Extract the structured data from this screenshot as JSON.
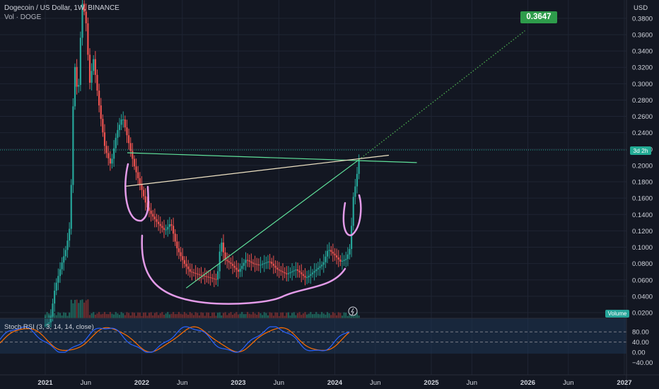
{
  "header": {
    "title": "Dogecoin / US Dollar, 1W, BINANCE",
    "volume_label": "Vol · DOGE"
  },
  "axis": {
    "currency": "USD"
  },
  "target_price_label": "0.3647",
  "countdown_label": "3d 2h",
  "volume_tag": "Volume",
  "stoch": {
    "label": "Stoch RSI (3, 3, 14, 14, close)",
    "ticks": [
      "80.00",
      "40.00",
      "0.00",
      "−40.00"
    ]
  },
  "chart_data": {
    "type": "candlestick",
    "title": "Dogecoin / US Dollar, 1W, BINANCE",
    "y_scale": "linear",
    "y_ticks": [
      "0.3800",
      "0.3600",
      "0.3400",
      "0.3200",
      "0.3000",
      "0.2800",
      "0.2600",
      "0.2400",
      "0.2200",
      "0.2000",
      "0.1800",
      "0.1600",
      "0.1400",
      "0.1200",
      "0.1000",
      "0.0800",
      "0.0600",
      "0.0400",
      "0.0200"
    ],
    "x_ticks": [
      "2021",
      "Jun",
      "2022",
      "Jun",
      "2023",
      "Jun",
      "2024",
      "Jun",
      "2025",
      "Jun",
      "2026",
      "Jun",
      "2027"
    ],
    "price_path": [
      [
        2021.0,
        0.005
      ],
      [
        2021.05,
        0.009
      ],
      [
        2021.1,
        0.05
      ],
      [
        2021.17,
        0.08
      ],
      [
        2021.22,
        0.1
      ],
      [
        2021.26,
        0.13
      ],
      [
        2021.3,
        0.33
      ],
      [
        2021.34,
        0.28
      ],
      [
        2021.38,
        0.4
      ],
      [
        2021.42,
        0.38
      ],
      [
        2021.46,
        0.3
      ],
      [
        2021.5,
        0.33
      ],
      [
        2021.55,
        0.28
      ],
      [
        2021.62,
        0.22
      ],
      [
        2021.68,
        0.2
      ],
      [
        2021.74,
        0.24
      ],
      [
        2021.8,
        0.26
      ],
      [
        2021.86,
        0.23
      ],
      [
        2021.92,
        0.2
      ],
      [
        2022.0,
        0.17
      ],
      [
        2022.05,
        0.15
      ],
      [
        2022.1,
        0.14
      ],
      [
        2022.16,
        0.13
      ],
      [
        2022.24,
        0.12
      ],
      [
        2022.3,
        0.13
      ],
      [
        2022.36,
        0.1
      ],
      [
        2022.44,
        0.08
      ],
      [
        2022.5,
        0.07
      ],
      [
        2022.6,
        0.066
      ],
      [
        2022.7,
        0.063
      ],
      [
        2022.78,
        0.06
      ],
      [
        2022.82,
        0.11
      ],
      [
        2022.86,
        0.085
      ],
      [
        2022.92,
        0.08
      ],
      [
        2023.0,
        0.07
      ],
      [
        2023.08,
        0.085
      ],
      [
        2023.15,
        0.08
      ],
      [
        2023.22,
        0.078
      ],
      [
        2023.32,
        0.083
      ],
      [
        2023.4,
        0.073
      ],
      [
        2023.5,
        0.067
      ],
      [
        2023.6,
        0.073
      ],
      [
        2023.7,
        0.062
      ],
      [
        2023.78,
        0.07
      ],
      [
        2023.88,
        0.08
      ],
      [
        2023.93,
        0.098
      ],
      [
        2024.0,
        0.09
      ],
      [
        2024.06,
        0.082
      ],
      [
        2024.12,
        0.086
      ],
      [
        2024.16,
        0.1
      ],
      [
        2024.19,
        0.16
      ],
      [
        2024.22,
        0.18
      ],
      [
        2024.25,
        0.207
      ]
    ],
    "drawings": {
      "rising_trend": [
        [
          2022.46,
          0.05
        ],
        [
          2024.25,
          0.207
        ]
      ],
      "projection_to_target": [
        [
          2024.25,
          0.207
        ],
        [
          2025.97,
          0.3647
        ]
      ],
      "falling_line": [
        [
          2021.85,
          0.2155
        ],
        [
          2024.85,
          0.2035
        ]
      ],
      "neckline": [
        [
          2021.83,
          0.1745
        ],
        [
          2024.56,
          0.2125
        ]
      ]
    },
    "target_price": 0.3647,
    "stoch_rsi": {
      "ylim": [
        -40,
        100
      ],
      "bands": [
        80,
        40
      ]
    }
  }
}
